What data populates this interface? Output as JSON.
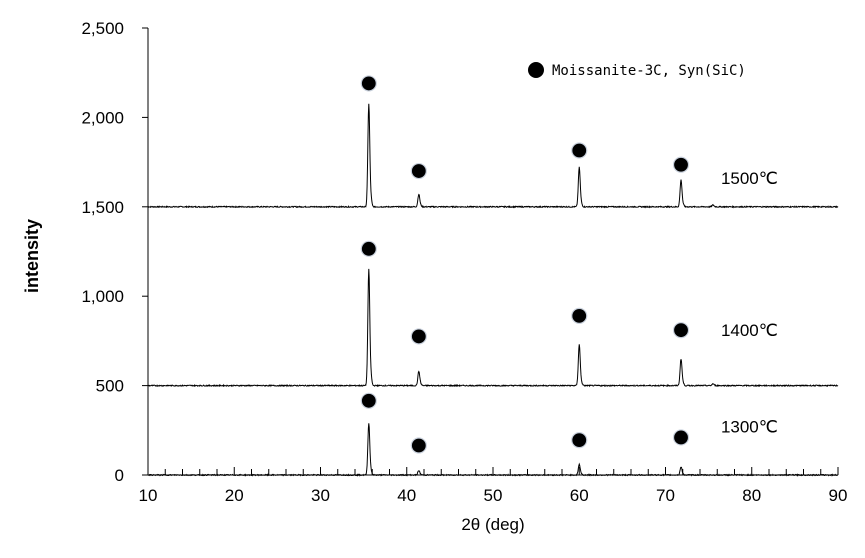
{
  "chart_data": {
    "type": "line",
    "title": "",
    "xlabel": "2θ (deg)",
    "ylabel": "intensity",
    "xlim": [
      10,
      90
    ],
    "ylim": [
      0,
      2500
    ],
    "x_ticks": [
      10,
      20,
      30,
      40,
      50,
      60,
      70,
      80,
      90
    ],
    "x_tick_labels": [
      "10",
      "20",
      "30",
      "40",
      "50",
      "60",
      "70",
      "80",
      "90"
    ],
    "y_ticks": [
      0,
      500,
      1000,
      1500,
      2000,
      2500
    ],
    "y_tick_labels": [
      "0",
      "500",
      "1,000",
      "1,500",
      "2,000",
      "2,500"
    ],
    "grid": false,
    "legend": {
      "position": "top-right",
      "marker": "filled-circle",
      "label": "Moissanite-3C, Syn(SiC)"
    },
    "series": [
      {
        "name": "1500℃",
        "baseline": 1500,
        "peaks": [
          [
            35.6,
            2075
          ],
          [
            41.4,
            1570
          ],
          [
            60.0,
            1720
          ],
          [
            71.8,
            1650
          ],
          [
            75.5,
            1510
          ]
        ],
        "markers": [
          [
            35.6,
            2190
          ],
          [
            41.4,
            1700
          ],
          [
            60.0,
            1815
          ],
          [
            71.8,
            1735
          ]
        ],
        "label_pos": [
          75.5,
          1660
        ]
      },
      {
        "name": "1400℃",
        "baseline": 500,
        "peaks": [
          [
            35.6,
            1150
          ],
          [
            41.4,
            580
          ],
          [
            60.0,
            730
          ],
          [
            71.8,
            650
          ],
          [
            75.5,
            510
          ]
        ],
        "markers": [
          [
            35.6,
            1265
          ],
          [
            41.4,
            775
          ],
          [
            60.0,
            890
          ],
          [
            71.8,
            810
          ]
        ],
        "label_pos": [
          75.5,
          810
        ]
      },
      {
        "name": "1300℃",
        "baseline": 0,
        "peaks": [
          [
            35.6,
            290
          ],
          [
            41.4,
            25
          ],
          [
            60.0,
            60
          ],
          [
            71.8,
            45
          ]
        ],
        "markers": [
          [
            35.6,
            415
          ],
          [
            41.4,
            165
          ],
          [
            60.0,
            195
          ],
          [
            71.8,
            210
          ]
        ],
        "label_pos": [
          75.5,
          270
        ]
      }
    ]
  }
}
